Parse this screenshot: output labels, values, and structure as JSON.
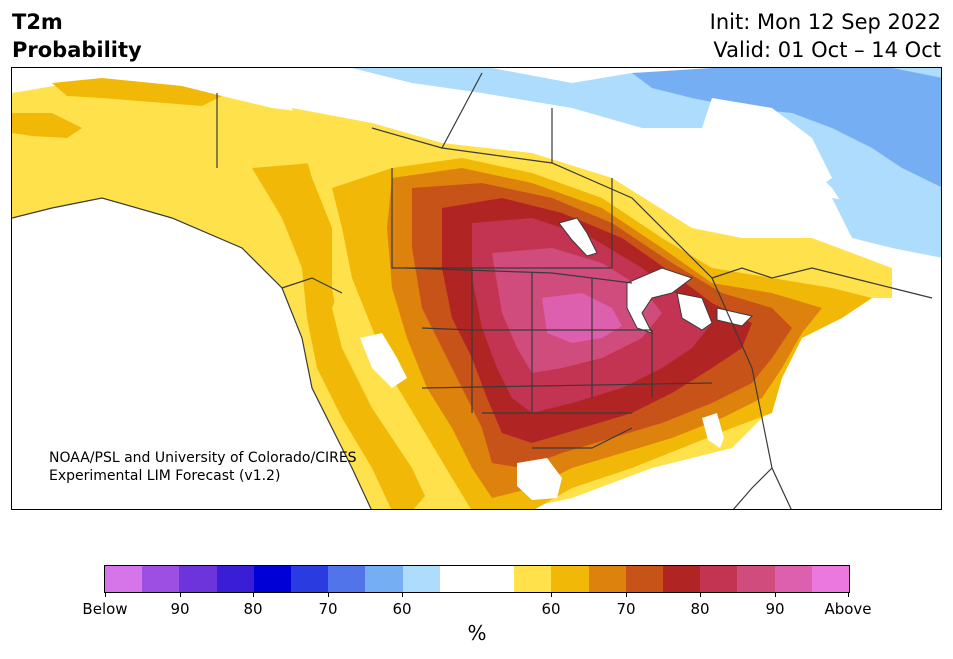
{
  "header": {
    "title_line1": "T2m",
    "title_line2": "Probability",
    "init_text": "Init: Mon 12 Sep 2022",
    "valid_text": "Valid: 01 Oct – 14 Oct"
  },
  "credit": {
    "line1": "NOAA/PSL and University of Colorado/CIRES",
    "line2": "Experimental LIM Forecast (v1.2)"
  },
  "colorbar": {
    "colors": [
      "#d674ea",
      "#9e4fe3",
      "#6c34da",
      "#3a1ed6",
      "#0000d6",
      "#2a3ce0",
      "#5274ea",
      "#76aef4",
      "#aedcfc",
      "#ffffff",
      "#ffffff",
      "#ffe14c",
      "#f2b808",
      "#de820e",
      "#c85318",
      "#b02424",
      "#c23452",
      "#d04c7c",
      "#dc60ae",
      "#ea78de"
    ],
    "tick_labels": [
      "Below",
      "90",
      "80",
      "70",
      "60",
      "60",
      "70",
      "80",
      "90",
      "Above"
    ],
    "unit": "%"
  },
  "map": {
    "legend_colors": {
      "above_50": "#ffe14c",
      "above_60": "#f2b808",
      "above_70": "#de820e",
      "above_80": "#c85318",
      "above_85": "#b02424",
      "above_90": "#c23452",
      "above_95": "#d04c7c",
      "above_max": "#dc60ae",
      "below_50": "#aedcfc",
      "below_60": "#76aef4",
      "coastline": "#3a3a3a",
      "lake": "#ffffff"
    }
  }
}
